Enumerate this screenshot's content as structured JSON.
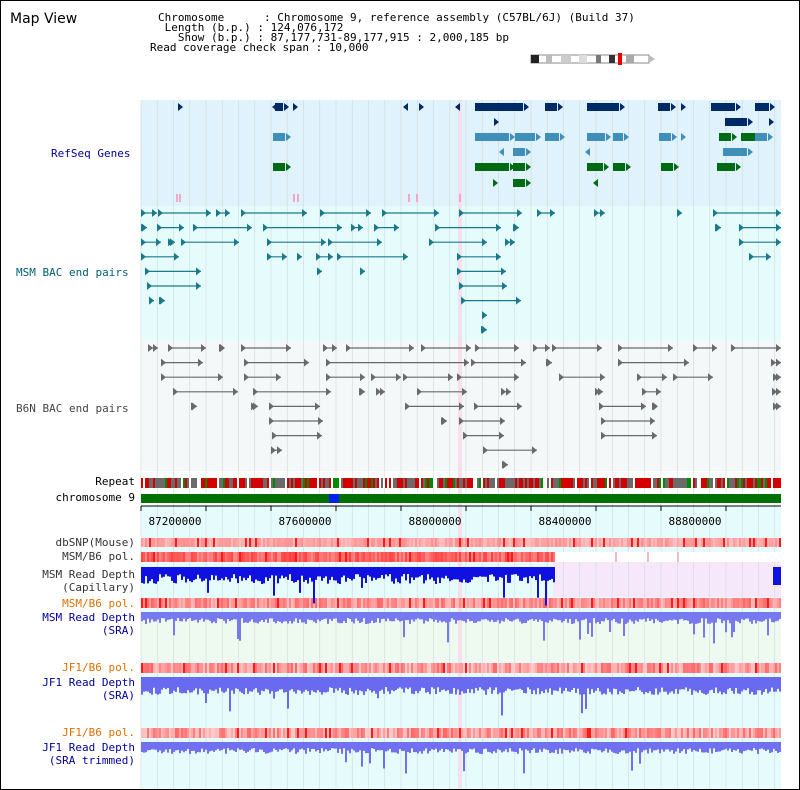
{
  "window": {
    "title": "Map View"
  },
  "info": {
    "chromosome": "Chromosome      : Chromosome 9, reference assembly (C57BL/6J) (Build 37)",
    "length": " Length (b.p.) : 124,076,172",
    "show": "   Show (b.p.) : 87,177,731-89,177,915 : 2,000,185 bp",
    "coverage": "Read coverage check span : 10,000"
  },
  "tracks": {
    "refseq": "RefSeq Genes",
    "msm_bac": "MSM BAC end pairs",
    "b6n_bac": "B6N BAC end pairs",
    "repeat": "Repeat",
    "chromosome": "chromosome 9",
    "dbsnp": "dbSNP(Mouse)",
    "msm_b6_pol": "MSM/B6 pol.",
    "msm_depth_cap_1": "MSM Read Depth",
    "msm_depth_cap_2": "(Capillary)",
    "msm_b6_pol_sra": "MSM/B6 pol.",
    "msm_depth_sra_1": "MSM Read Depth",
    "msm_depth_sra_2": "(SRA)",
    "jf1_b6_pol": "JF1/B6 pol.",
    "jf1_depth_sra_1": "JF1 Read Depth",
    "jf1_depth_sra_2": "(SRA)",
    "jf1_b6_pol_trim": "JF1/B6 pol.",
    "jf1_depth_trim_1": "JF1 Read Depth",
    "jf1_depth_trim_2": "(SRA trimmed)"
  },
  "axis": {
    "ticks": [
      "87200000",
      "87600000",
      "88000000",
      "88400000",
      "88800000"
    ]
  },
  "colors": {
    "refseq_bg": "#e0f2fb",
    "bac_bg": "#e6fcfc",
    "b6n_bg": "#f4f8f8",
    "chrom": "#007000",
    "label_blue": "#000099",
    "label_teal": "#005f73",
    "label_orange": "#e07000",
    "label_gray": "#333333"
  }
}
